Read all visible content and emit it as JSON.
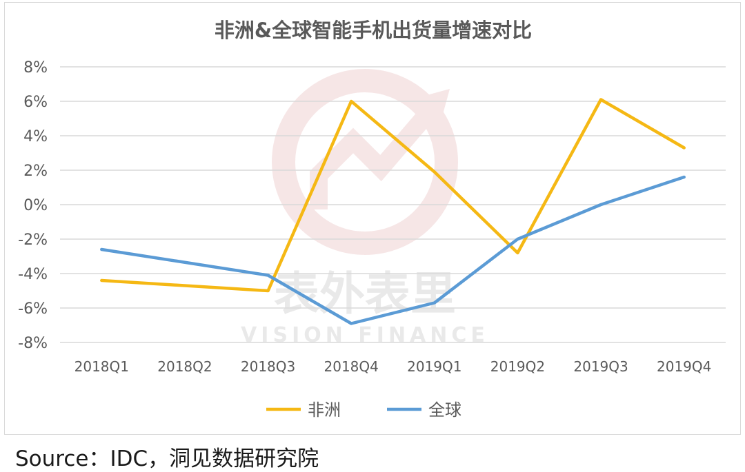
{
  "chart_data": {
    "type": "line",
    "title": "非洲&全球智能手机出货量增速对比",
    "categories": [
      "2018Q1",
      "2018Q2",
      "2018Q3",
      "2018Q4",
      "2019Q1",
      "2019Q2",
      "2019Q3",
      "2019Q4"
    ],
    "series": [
      {
        "name": "非洲",
        "color": "#f5b814",
        "values": [
          -4.4,
          null,
          -5.0,
          6.0,
          1.9,
          -2.8,
          6.1,
          3.3
        ]
      },
      {
        "name": "全球",
        "color": "#5b9bd5",
        "values": [
          -2.6,
          null,
          -4.1,
          -6.9,
          -5.7,
          -2.0,
          0.0,
          1.6
        ]
      }
    ],
    "y_ticks": [
      "8%",
      "6%",
      "4%",
      "2%",
      "0%",
      "-2%",
      "-4%",
      "-6%",
      "-8%"
    ],
    "ylim": [
      -8,
      8
    ],
    "y_unit": "%",
    "grid": true,
    "legend_position": "bottom"
  },
  "watermark": {
    "text_cn": "表外表里",
    "text_en": "VISION FINANCE"
  },
  "source": "Source：IDC，洞见数据研究院"
}
